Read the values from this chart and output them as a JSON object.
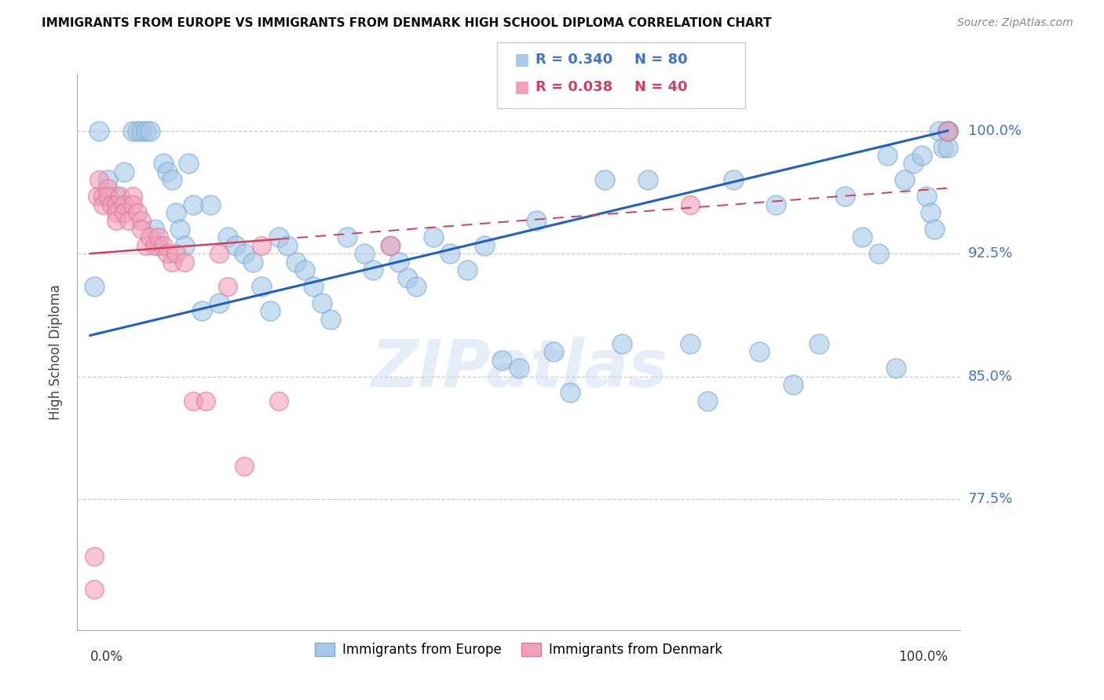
{
  "title": "IMMIGRANTS FROM EUROPE VS IMMIGRANTS FROM DENMARK HIGH SCHOOL DIPLOMA CORRELATION CHART",
  "source": "Source: ZipAtlas.com",
  "ylabel": "High School Diploma",
  "legend_blue_label": "Immigrants from Europe",
  "legend_pink_label": "Immigrants from Denmark",
  "blue_color": "#a8c8e8",
  "pink_color": "#f0a0b8",
  "blue_edge_color": "#7aaad0",
  "pink_edge_color": "#e07898",
  "blue_line_color": "#2060c0",
  "pink_line_color": "#d04060",
  "watermark": "ZIPatlas",
  "blue_r_text": "R = 0.340",
  "blue_n_text": "N = 80",
  "pink_r_text": "R = 0.038",
  "pink_n_text": "N = 40",
  "ytick_vals": [
    0.775,
    0.85,
    0.925,
    1.0
  ],
  "ytick_labels": [
    "77.5%",
    "85.0%",
    "92.5%",
    "100.0%"
  ],
  "ylim_low": 0.695,
  "ylim_high": 1.035,
  "xlim_low": -0.015,
  "xlim_high": 1.015,
  "blue_line_x0": 0.0,
  "blue_line_y0": 0.875,
  "blue_line_x1": 1.0,
  "blue_line_y1": 1.0,
  "pink_line_x0": 0.0,
  "pink_line_y0": 0.925,
  "pink_line_x1": 0.25,
  "pink_line_y1": 0.935,
  "blue_x": [
    0.005,
    0.01,
    0.02,
    0.03,
    0.04,
    0.05,
    0.055,
    0.06,
    0.065,
    0.07,
    0.075,
    0.08,
    0.085,
    0.09,
    0.095,
    0.1,
    0.105,
    0.11,
    0.115,
    0.12,
    0.13,
    0.14,
    0.15,
    0.16,
    0.17,
    0.18,
    0.19,
    0.2,
    0.21,
    0.22,
    0.23,
    0.24,
    0.25,
    0.26,
    0.27,
    0.28,
    0.3,
    0.32,
    0.33,
    0.35,
    0.36,
    0.37,
    0.38,
    0.4,
    0.42,
    0.44,
    0.46,
    0.48,
    0.5,
    0.52,
    0.54,
    0.56,
    0.6,
    0.62,
    0.65,
    0.7,
    0.72,
    0.75,
    0.78,
    0.8,
    0.82,
    0.85,
    0.88,
    0.9,
    0.92,
    0.93,
    0.94,
    0.95,
    0.96,
    0.97,
    0.975,
    0.98,
    0.985,
    0.99,
    0.995,
    1.0,
    1.0,
    1.0,
    1.0,
    1.0
  ],
  "blue_y": [
    0.905,
    1.0,
    0.97,
    0.96,
    0.975,
    1.0,
    1.0,
    1.0,
    1.0,
    1.0,
    0.94,
    0.93,
    0.98,
    0.975,
    0.97,
    0.95,
    0.94,
    0.93,
    0.98,
    0.955,
    0.89,
    0.955,
    0.895,
    0.935,
    0.93,
    0.925,
    0.92,
    0.905,
    0.89,
    0.935,
    0.93,
    0.92,
    0.915,
    0.905,
    0.895,
    0.885,
    0.935,
    0.925,
    0.915,
    0.93,
    0.92,
    0.91,
    0.905,
    0.935,
    0.925,
    0.915,
    0.93,
    0.86,
    0.855,
    0.945,
    0.865,
    0.84,
    0.97,
    0.87,
    0.97,
    0.87,
    0.835,
    0.97,
    0.865,
    0.955,
    0.845,
    0.87,
    0.96,
    0.935,
    0.925,
    0.985,
    0.855,
    0.97,
    0.98,
    0.985,
    0.96,
    0.95,
    0.94,
    1.0,
    0.99,
    1.0,
    1.0,
    1.0,
    0.99,
    1.0
  ],
  "pink_x": [
    0.005,
    0.005,
    0.008,
    0.01,
    0.015,
    0.015,
    0.02,
    0.02,
    0.025,
    0.03,
    0.03,
    0.03,
    0.035,
    0.04,
    0.04,
    0.045,
    0.05,
    0.05,
    0.055,
    0.06,
    0.06,
    0.065,
    0.07,
    0.075,
    0.08,
    0.085,
    0.09,
    0.095,
    0.1,
    0.11,
    0.12,
    0.135,
    0.15,
    0.16,
    0.18,
    0.2,
    0.22,
    0.35,
    0.7,
    1.0
  ],
  "pink_y": [
    0.74,
    0.72,
    0.96,
    0.97,
    0.96,
    0.955,
    0.965,
    0.96,
    0.955,
    0.955,
    0.95,
    0.945,
    0.96,
    0.955,
    0.95,
    0.945,
    0.96,
    0.955,
    0.95,
    0.945,
    0.94,
    0.93,
    0.935,
    0.93,
    0.935,
    0.93,
    0.925,
    0.92,
    0.925,
    0.92,
    0.835,
    0.835,
    0.925,
    0.905,
    0.795,
    0.93,
    0.835,
    0.93,
    0.955,
    1.0
  ]
}
